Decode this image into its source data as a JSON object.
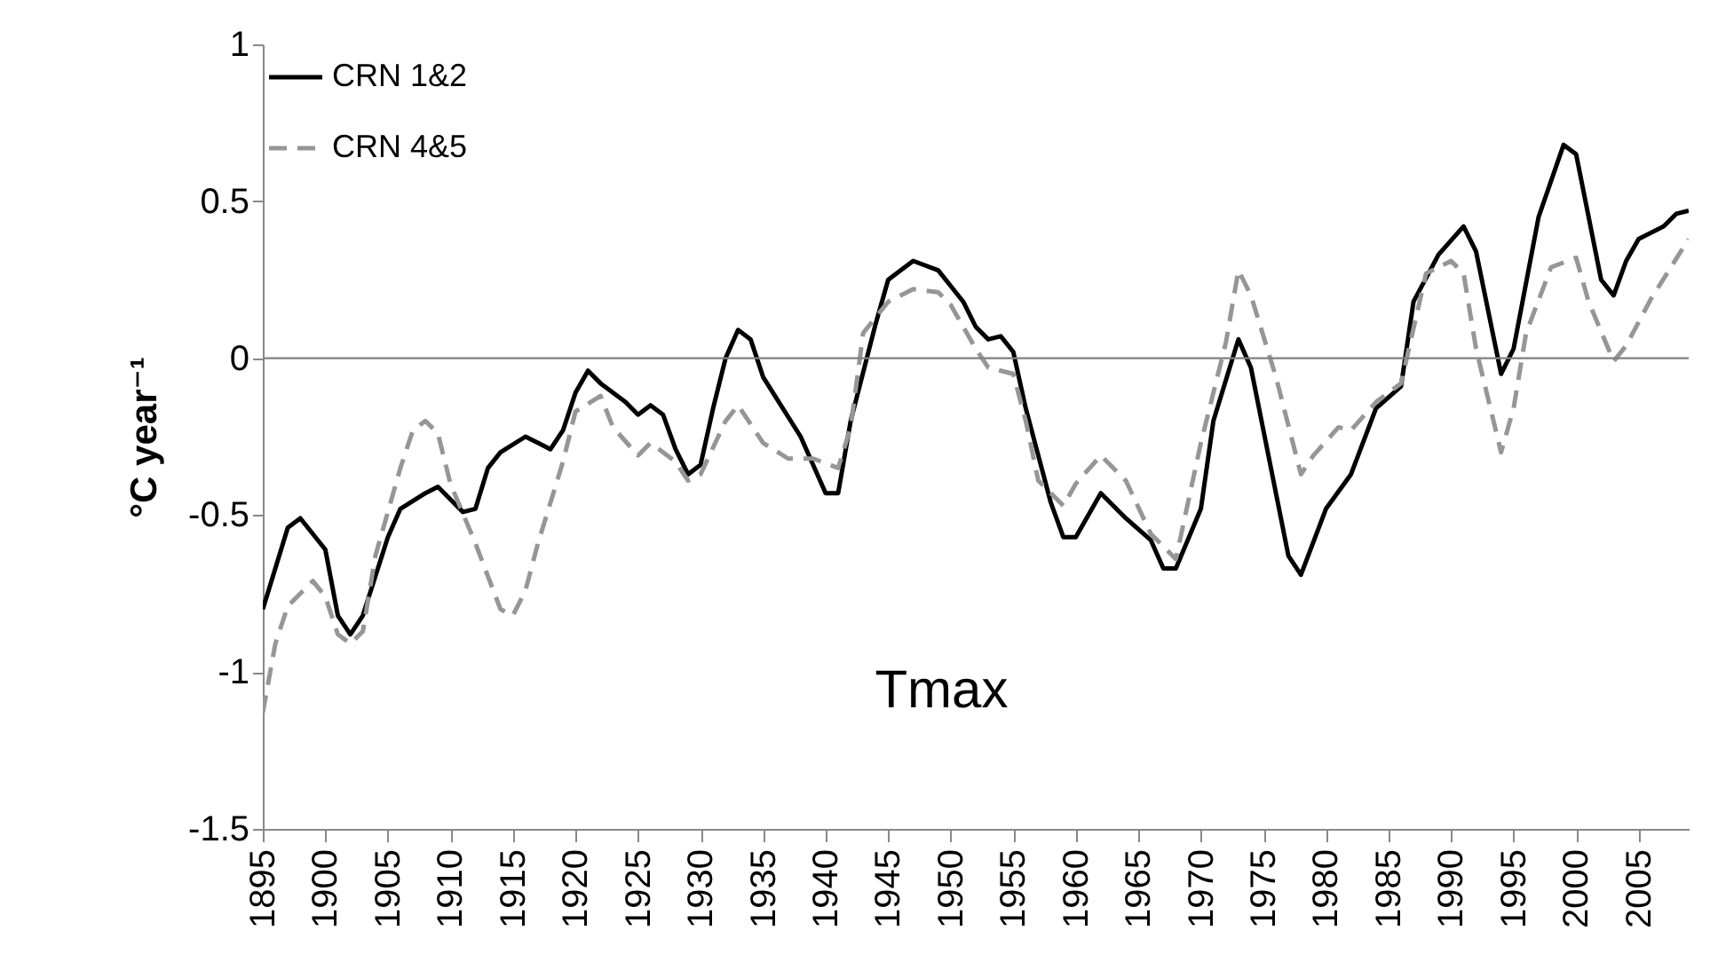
{
  "chart_data": {
    "type": "line",
    "ylabel": "°C year⁻¹",
    "annotations": [
      "Tmax"
    ],
    "xlim": [
      1895,
      2009
    ],
    "xticks": [
      1895,
      1900,
      1905,
      1910,
      1915,
      1920,
      1925,
      1930,
      1935,
      1940,
      1945,
      1950,
      1955,
      1960,
      1965,
      1970,
      1975,
      1980,
      1985,
      1990,
      1995,
      2000,
      2005
    ],
    "ylim": [
      -1.5,
      1
    ],
    "yticks": [
      -1.5,
      -1,
      -0.5,
      0,
      0.5,
      1
    ],
    "legend": "top left",
    "ref_lines": [
      {
        "axis": "y",
        "value": 0,
        "color": "#808080"
      }
    ],
    "series": [
      {
        "name": "CRN 1&2",
        "color": "#000000",
        "line_style": "solid",
        "x": [
          1895,
          1897,
          1898,
          1900,
          1901,
          1902,
          1903,
          1905,
          1906,
          1908,
          1909,
          1910,
          1911,
          1912,
          1913,
          1914,
          1916,
          1917,
          1918,
          1919,
          1920,
          1921,
          1922,
          1924,
          1925,
          1926,
          1927,
          1928,
          1929,
          1930,
          1931,
          1932,
          1933,
          1934,
          1935,
          1938,
          1940,
          1941,
          1942,
          1944,
          1945,
          1947,
          1949,
          1950,
          1951,
          1952,
          1953,
          1954,
          1955,
          1956,
          1958,
          1959,
          1960,
          1962,
          1964,
          1966,
          1967,
          1968,
          1970,
          1971,
          1973,
          1974,
          1977,
          1978,
          1980,
          1982,
          1984,
          1986,
          1987,
          1989,
          1991,
          1992,
          1994,
          1995,
          1997,
          1999,
          2000,
          2002,
          2003,
          2004,
          2005,
          2007,
          2008,
          2009
        ],
        "values": [
          -0.8,
          -0.54,
          -0.51,
          -0.61,
          -0.82,
          -0.88,
          -0.82,
          -0.57,
          -0.48,
          -0.43,
          -0.41,
          -0.45,
          -0.49,
          -0.48,
          -0.35,
          -0.3,
          -0.25,
          -0.27,
          -0.29,
          -0.23,
          -0.11,
          -0.04,
          -0.08,
          -0.14,
          -0.18,
          -0.15,
          -0.18,
          -0.29,
          -0.37,
          -0.34,
          -0.16,
          0,
          0.09,
          0.06,
          -0.06,
          -0.25,
          -0.43,
          -0.43,
          -0.2,
          0.11,
          0.25,
          0.31,
          0.28,
          0.23,
          0.18,
          0.1,
          0.06,
          0.07,
          0.02,
          -0.16,
          -0.46,
          -0.57,
          -0.57,
          -0.43,
          -0.51,
          -0.58,
          -0.67,
          -0.67,
          -0.48,
          -0.2,
          0.06,
          -0.03,
          -0.63,
          -0.69,
          -0.48,
          -0.37,
          -0.16,
          -0.09,
          0.18,
          0.33,
          0.42,
          0.34,
          -0.05,
          0.03,
          0.45,
          0.68,
          0.65,
          0.25,
          0.2,
          0.31,
          0.38,
          0.42,
          0.46,
          0.47
        ]
      },
      {
        "name": "CRN 4&5",
        "color": "#969696",
        "line_style": "dashed",
        "x": [
          1895,
          1896,
          1897,
          1899,
          1900,
          1901,
          1902,
          1903,
          1904,
          1906,
          1907,
          1908,
          1909,
          1910,
          1912,
          1914,
          1915,
          1916,
          1917,
          1919,
          1920,
          1922,
          1923,
          1925,
          1926,
          1928,
          1929,
          1930,
          1932,
          1933,
          1935,
          1937,
          1939,
          1941,
          1942,
          1943,
          1945,
          1947,
          1949,
          1950,
          1952,
          1953,
          1955,
          1956,
          1957,
          1959,
          1960,
          1962,
          1964,
          1966,
          1968,
          1970,
          1972,
          1973,
          1974,
          1976,
          1978,
          1979,
          1981,
          1982,
          1984,
          1986,
          1988,
          1990,
          1991,
          1992,
          1994,
          1995,
          1996,
          1998,
          2000,
          2001,
          2003,
          2004,
          2006,
          2009
        ],
        "values": [
          -1.13,
          -0.91,
          -0.79,
          -0.71,
          -0.76,
          -0.88,
          -0.91,
          -0.87,
          -0.63,
          -0.35,
          -0.23,
          -0.2,
          -0.24,
          -0.4,
          -0.59,
          -0.8,
          -0.82,
          -0.74,
          -0.59,
          -0.33,
          -0.17,
          -0.12,
          -0.22,
          -0.31,
          -0.27,
          -0.33,
          -0.39,
          -0.37,
          -0.2,
          -0.15,
          -0.27,
          -0.32,
          -0.32,
          -0.35,
          -0.22,
          0.08,
          0.18,
          0.22,
          0.21,
          0.17,
          0.03,
          -0.03,
          -0.05,
          -0.2,
          -0.39,
          -0.47,
          -0.4,
          -0.31,
          -0.39,
          -0.56,
          -0.64,
          -0.27,
          0.05,
          0.28,
          0.2,
          -0.06,
          -0.37,
          -0.31,
          -0.22,
          -0.23,
          -0.14,
          -0.08,
          0.27,
          0.31,
          0.27,
          0.03,
          -0.3,
          -0.16,
          0.08,
          0.29,
          0.32,
          0.18,
          -0.01,
          0.04,
          0.19,
          0.38
        ]
      }
    ]
  }
}
